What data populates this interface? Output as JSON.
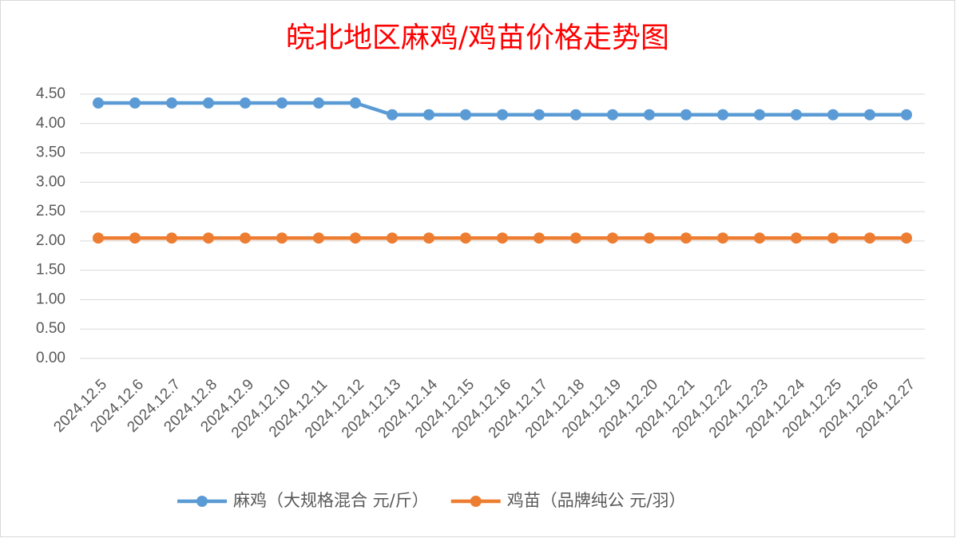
{
  "chart_data": {
    "type": "line",
    "title": "皖北地区麻鸡/鸡苗价格走势图",
    "categories": [
      "2024.12.5",
      "2024.12.6",
      "2024.12.7",
      "2024.12.8",
      "2024.12.9",
      "2024.12.10",
      "2024.12.11",
      "2024.12.12",
      "2024.12.13",
      "2024.12.14",
      "2024.12.15",
      "2024.12.16",
      "2024.12.17",
      "2024.12.18",
      "2024.12.19",
      "2024.12.20",
      "2024.12.21",
      "2024.12.22",
      "2024.12.23",
      "2024.12.24",
      "2024.12.25",
      "2024.12.26",
      "2024.12.27"
    ],
    "series": [
      {
        "name": "麻鸡（大规格混合 元/斤）",
        "color": "#5b9bd5",
        "values": [
          4.35,
          4.35,
          4.35,
          4.35,
          4.35,
          4.35,
          4.35,
          4.35,
          4.15,
          4.15,
          4.15,
          4.15,
          4.15,
          4.15,
          4.15,
          4.15,
          4.15,
          4.15,
          4.15,
          4.15,
          4.15,
          4.15,
          4.15
        ]
      },
      {
        "name": "鸡苗（品牌纯公 元/羽）",
        "color": "#ed7d31",
        "values": [
          2.05,
          2.05,
          2.05,
          2.05,
          2.05,
          2.05,
          2.05,
          2.05,
          2.05,
          2.05,
          2.05,
          2.05,
          2.05,
          2.05,
          2.05,
          2.05,
          2.05,
          2.05,
          2.05,
          2.05,
          2.05,
          2.05,
          2.05
        ]
      }
    ],
    "ylim": [
      0,
      4.5
    ],
    "yticks": [
      {
        "value": 0,
        "label": "0.00"
      },
      {
        "value": 0.5,
        "label": "0.50"
      },
      {
        "value": 1,
        "label": "1.00"
      },
      {
        "value": 1.5,
        "label": "1.50"
      },
      {
        "value": 2,
        "label": "2.00"
      },
      {
        "value": 2.5,
        "label": "2.50"
      },
      {
        "value": 3,
        "label": "3.00"
      },
      {
        "value": 3.5,
        "label": "3.50"
      },
      {
        "value": 4,
        "label": "4.00"
      },
      {
        "value": 4.5,
        "label": "4.50"
      }
    ],
    "grid": true,
    "legend": "bottom"
  }
}
